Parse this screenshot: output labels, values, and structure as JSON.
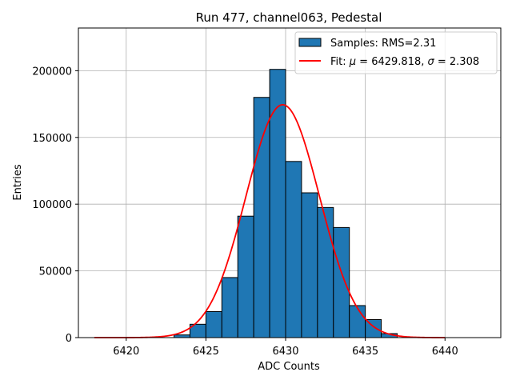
{
  "chart_data": {
    "type": "bar",
    "title": "Run 477, channel063, Pedestal",
    "xlabel": "ADC Counts",
    "ylabel": "Entries",
    "xlim": [
      6417,
      6443.5
    ],
    "ylim": [
      0,
      232000
    ],
    "grid": true,
    "legend_position": "top-right",
    "xticks": [
      6420,
      6425,
      6430,
      6435,
      6440
    ],
    "xtick_labels": [
      "6420",
      "6425",
      "6430",
      "6435",
      "6440"
    ],
    "yticks": [
      0,
      50000,
      100000,
      150000,
      200000
    ],
    "ytick_labels": [
      "0",
      "50000",
      "100000",
      "150000",
      "200000"
    ],
    "histogram": {
      "name": "Samples: RMS=2.31",
      "color": "#1f77b4",
      "edge_color": "#000000",
      "bin_width": 1,
      "bin_starts": [
        6423,
        6424,
        6425,
        6426,
        6427,
        6428,
        6429,
        6430,
        6431,
        6432,
        6433,
        6434,
        6435,
        6436
      ],
      "counts": [
        2000,
        10000,
        19500,
        45000,
        91000,
        180000,
        201000,
        132000,
        108500,
        97500,
        82500,
        24000,
        13500,
        3000
      ]
    },
    "fit": {
      "name_prefix": "Fit: ",
      "mu_symbol": "μ",
      "mu_value": " = 6429.818, ",
      "sigma_symbol": "σ",
      "sigma_value": " = 2.308",
      "color": "#ff0000",
      "mu": 6429.818,
      "sigma": 2.308,
      "amplitude": 174500,
      "x_range": [
        6418,
        6440
      ]
    }
  }
}
